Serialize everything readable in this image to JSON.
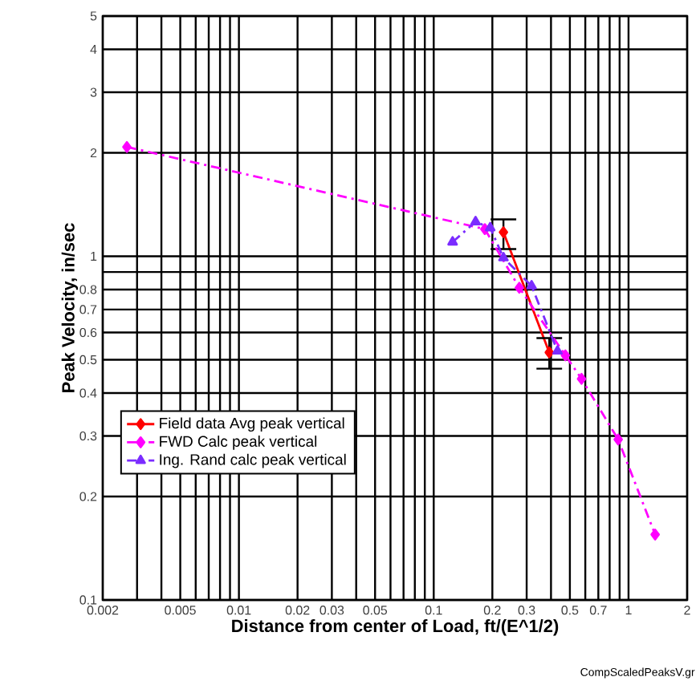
{
  "chart_data": {
    "type": "line",
    "xlabel": "Distance from center of Load, ft/(E^1/2)",
    "ylabel": "Peak Velocity, in/sec",
    "log": "xy",
    "xlim": [
      0.002,
      2
    ],
    "ylim": [
      0.1,
      5
    ],
    "xticks": [
      0.002,
      {
        "value": 0.003,
        "label": null
      },
      {
        "value": 0.004,
        "label": null
      },
      0.005,
      {
        "value": 0.006,
        "label": null
      },
      {
        "value": 0.007,
        "label": null
      },
      {
        "value": 0.008,
        "label": null
      },
      {
        "value": 0.009,
        "label": null
      },
      0.01,
      0.02,
      0.03,
      {
        "value": 0.04,
        "label": null
      },
      0.05,
      {
        "value": 0.06,
        "label": null
      },
      {
        "value": 0.07,
        "label": null
      },
      {
        "value": 0.08,
        "label": null
      },
      {
        "value": 0.09,
        "label": null
      },
      0.1,
      0.2,
      0.3,
      {
        "value": 0.4,
        "label": null
      },
      0.5,
      {
        "value": 0.6,
        "label": null
      },
      0.7,
      {
        "value": 0.8,
        "label": null
      },
      {
        "value": 0.9,
        "label": null
      },
      1,
      2
    ],
    "yticks": [
      0.1,
      0.2,
      0.3,
      0.4,
      0.5,
      0.6,
      0.7,
      0.8,
      {
        "value": 0.9,
        "label": null
      },
      1,
      2,
      3,
      4,
      5
    ],
    "grid": true,
    "legend": "left",
    "series": [
      {
        "name": "Field data Avg peak vertical",
        "color": "#ff0000",
        "marker": "diamond",
        "line_style": "solid",
        "x": [
          0.228,
          0.392
        ],
        "values": [
          1.175,
          0.525
        ],
        "errors": [
          [
            1.05,
            1.28
          ],
          [
            0.471,
            0.578
          ]
        ]
      },
      {
        "name": "FWD Calc peak vertical",
        "color": "#ff00ff",
        "marker": "diamond",
        "line_style": "dashed",
        "x": [
          0.00266,
          0.183,
          0.275,
          0.474,
          0.574,
          0.885,
          1.37
        ],
        "values": [
          2.08,
          1.2,
          0.81,
          0.515,
          0.44,
          0.293,
          0.155
        ]
      },
      {
        "name": "Ing. Rand calc peak vertical",
        "color": "#7b2cff",
        "marker": "triangle",
        "line_style": "dashed",
        "x": [
          0.125,
          0.164,
          0.195,
          0.228,
          0.318,
          0.432
        ],
        "values": [
          1.1,
          1.26,
          1.21,
          0.99,
          0.82,
          0.53
        ]
      }
    ],
    "annotations": [
      "CompScaledPeaksV.gr"
    ]
  }
}
